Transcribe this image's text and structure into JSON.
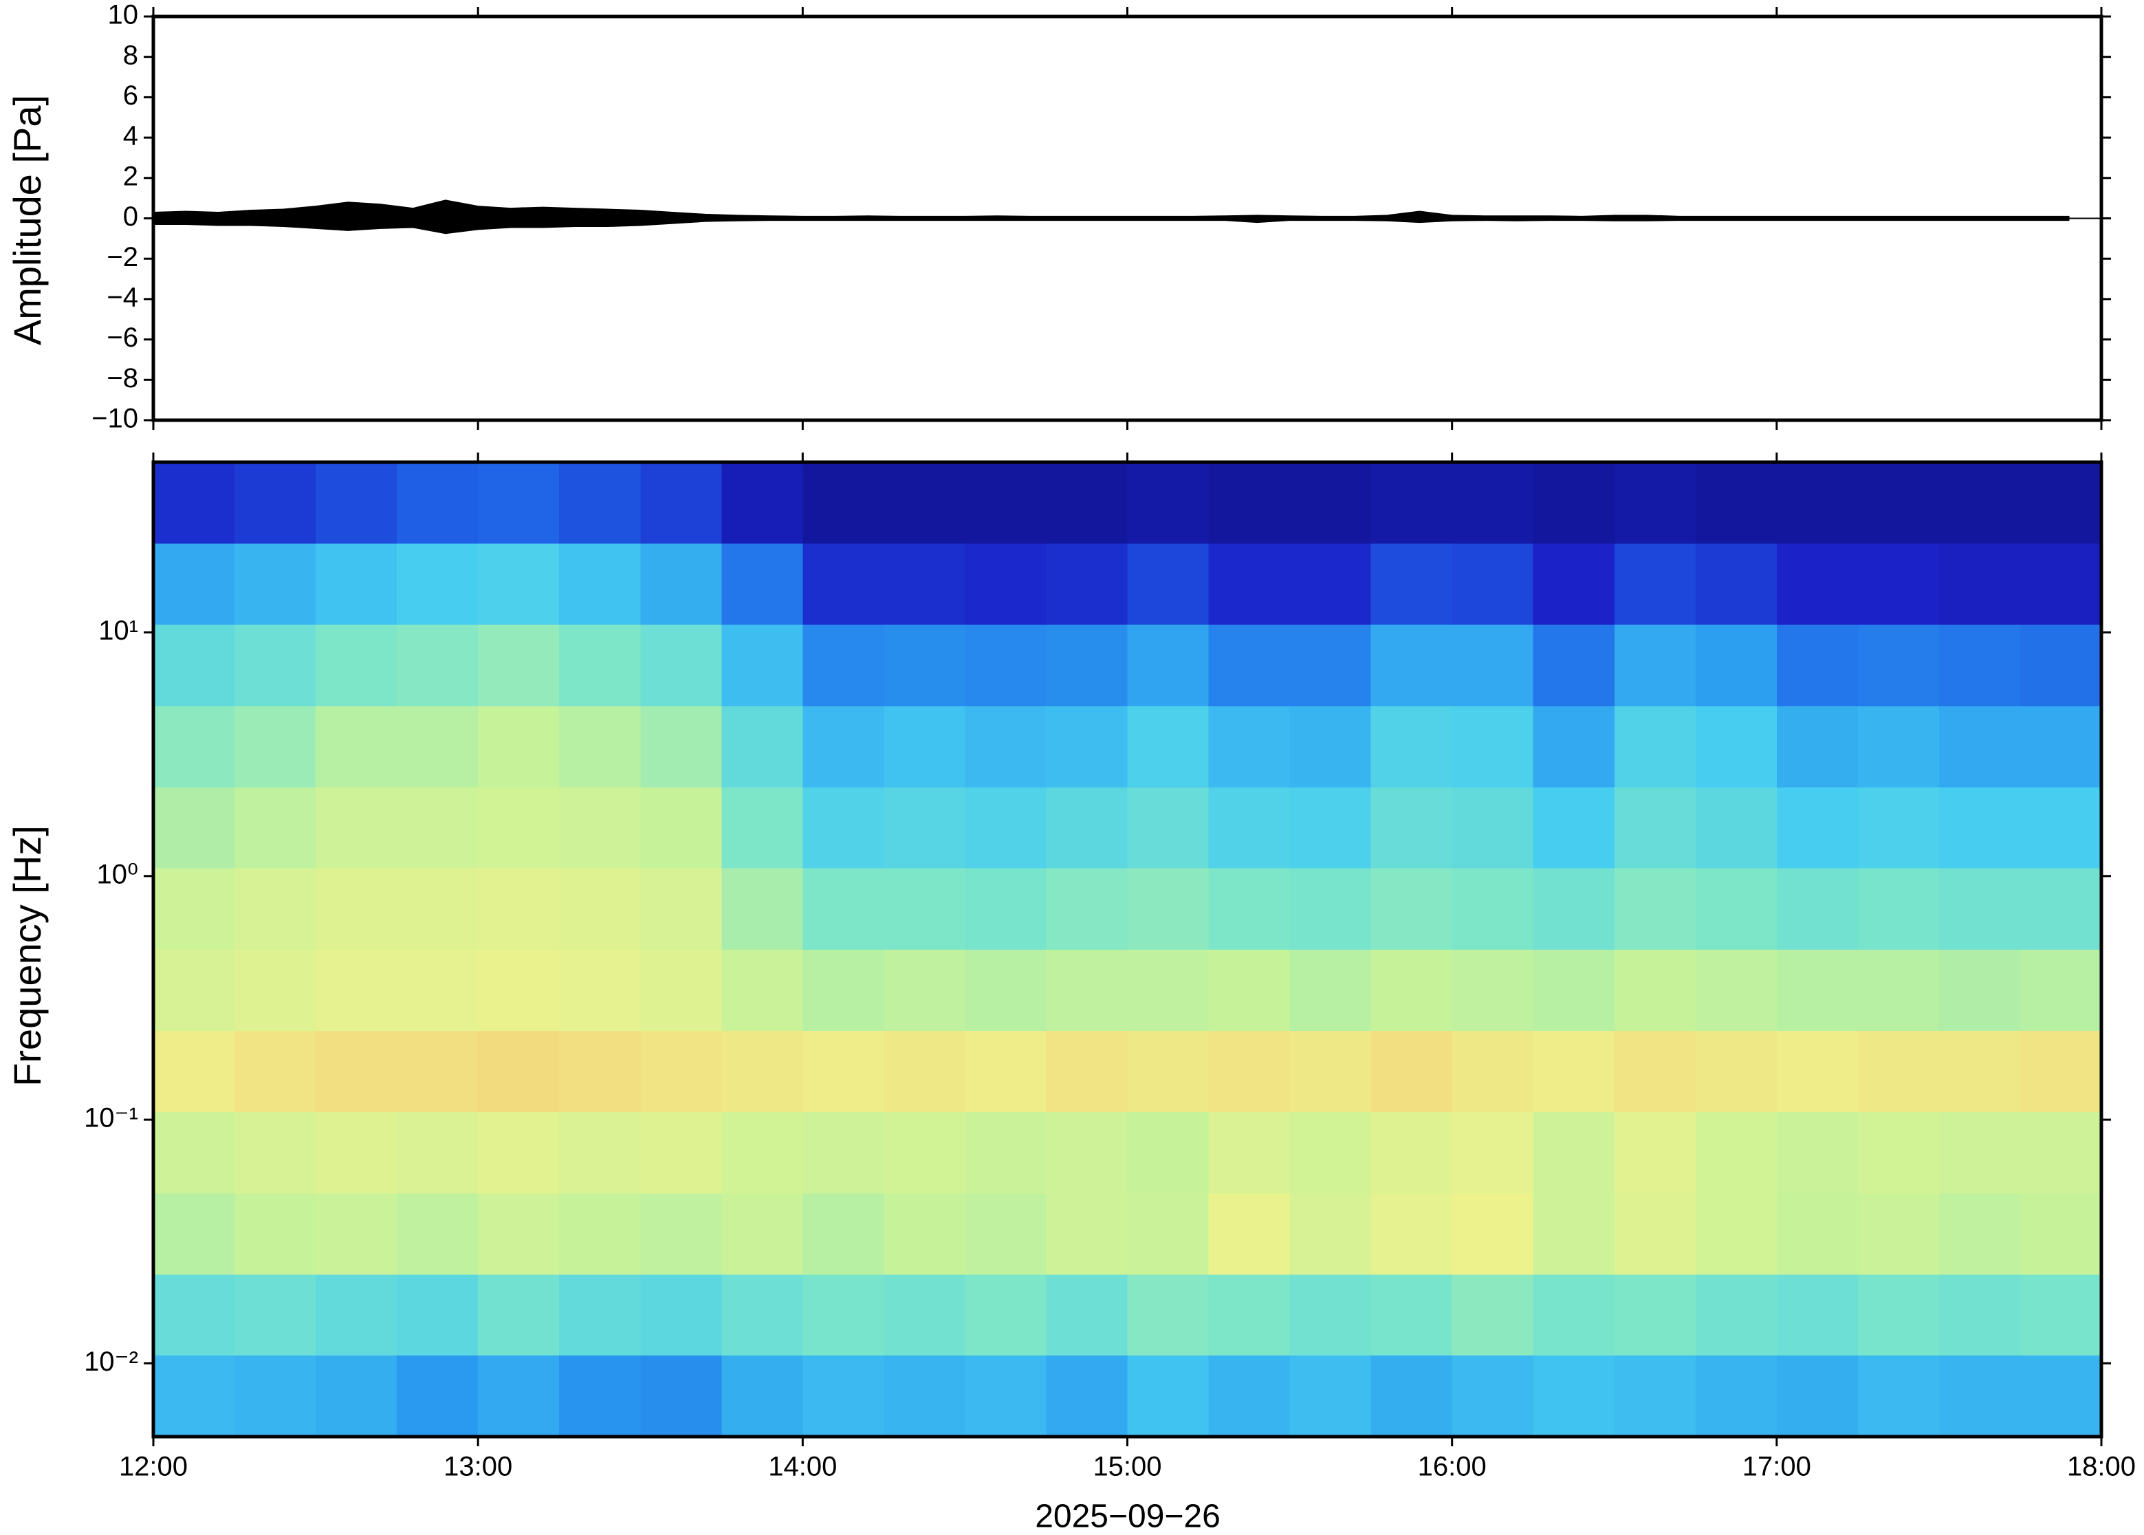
{
  "chart_data": [
    {
      "type": "area",
      "ylabel": "Amplitude [Pa]",
      "xlim": [
        12,
        18
      ],
      "xticks": [
        12,
        13,
        14,
        15,
        16,
        17,
        18
      ],
      "ylim": [
        -10,
        10
      ],
      "yticks": [
        {
          "value": -10,
          "label": "−10"
        },
        {
          "value": -8,
          "label": "−8"
        },
        {
          "value": -6,
          "label": "−6"
        },
        {
          "value": -4,
          "label": "−4"
        },
        {
          "value": -2,
          "label": "−2"
        },
        0,
        2,
        4,
        6,
        8,
        10
      ],
      "color": "#000000",
      "x": [
        12.0,
        12.1,
        12.2,
        12.3,
        12.4,
        12.5,
        12.6,
        12.7,
        12.8,
        12.9,
        13.0,
        13.1,
        13.2,
        13.3,
        13.4,
        13.5,
        13.6,
        13.7,
        13.8,
        13.9,
        14.0,
        14.1,
        14.2,
        14.3,
        14.4,
        14.5,
        14.6,
        14.7,
        14.8,
        14.9,
        15.0,
        15.1,
        15.2,
        15.3,
        15.4,
        15.5,
        15.6,
        15.7,
        15.8,
        15.9,
        16.0,
        16.1,
        16.2,
        16.3,
        16.4,
        16.5,
        16.6,
        16.7,
        16.8,
        16.9,
        17.0,
        17.1,
        17.2,
        17.3,
        17.4,
        17.5,
        17.6,
        17.7,
        17.8,
        17.9
      ],
      "values": [
        0.3,
        0.35,
        0.3,
        0.4,
        0.45,
        0.6,
        0.8,
        0.7,
        0.5,
        0.9,
        0.6,
        0.5,
        0.55,
        0.5,
        0.45,
        0.4,
        0.3,
        0.2,
        0.15,
        0.12,
        0.1,
        0.1,
        0.12,
        0.1,
        0.1,
        0.1,
        0.12,
        0.1,
        0.1,
        0.1,
        0.1,
        0.1,
        0.1,
        0.12,
        0.15,
        0.12,
        0.1,
        0.1,
        0.15,
        0.35,
        0.15,
        0.12,
        0.12,
        0.12,
        0.1,
        0.15,
        0.15,
        0.1,
        0.1,
        0.1,
        0.1,
        0.1,
        0.1,
        0.1,
        0.1,
        0.1,
        0.1,
        0.1,
        0.1,
        0.1
      ],
      "lower": [
        -0.3,
        -0.3,
        -0.35,
        -0.35,
        -0.4,
        -0.5,
        -0.6,
        -0.5,
        -0.45,
        -0.75,
        -0.55,
        -0.45,
        -0.45,
        -0.4,
        -0.4,
        -0.35,
        -0.25,
        -0.15,
        -0.12,
        -0.1,
        -0.1,
        -0.1,
        -0.1,
        -0.1,
        -0.1,
        -0.1,
        -0.1,
        -0.1,
        -0.1,
        -0.1,
        -0.1,
        -0.1,
        -0.1,
        -0.1,
        -0.2,
        -0.1,
        -0.1,
        -0.1,
        -0.12,
        -0.2,
        -0.12,
        -0.1,
        -0.12,
        -0.1,
        -0.1,
        -0.12,
        -0.12,
        -0.1,
        -0.1,
        -0.1,
        -0.1,
        -0.1,
        -0.1,
        -0.1,
        -0.1,
        -0.1,
        -0.1,
        -0.1,
        -0.1,
        -0.1
      ]
    },
    {
      "type": "heatmap",
      "ylabel": "Frequency [Hz]",
      "xlabel": "2025−09−26",
      "xlim": [
        12,
        18
      ],
      "xticks": [
        {
          "value": 12,
          "label": "12:00"
        },
        {
          "value": 13,
          "label": "13:00"
        },
        {
          "value": 14,
          "label": "14:00"
        },
        {
          "value": 15,
          "label": "15:00"
        },
        {
          "value": 16,
          "label": "16:00"
        },
        {
          "value": 17,
          "label": "17:00"
        },
        {
          "value": 18,
          "label": "18:00"
        }
      ],
      "log_y": true,
      "ylim": [
        0.005,
        50
      ],
      "yticks": [
        {
          "value": 0.01,
          "label": "10⁻²"
        },
        {
          "value": 0.1,
          "label": "10⁻¹"
        },
        {
          "value": 1,
          "label": "10⁰"
        },
        {
          "value": 10,
          "label": "10¹"
        }
      ],
      "clim": [
        0,
        10
      ],
      "colormap": [
        "#0b0b72",
        "#1a22c8",
        "#1f5fe6",
        "#2a9af0",
        "#46cdf0",
        "#7ee6c8",
        "#c6f29a",
        "#eef28c",
        "#f5c270",
        "#f08a4a",
        "#d83a2a"
      ],
      "x": [
        12.0,
        12.25,
        12.5,
        12.75,
        13.0,
        13.25,
        13.5,
        13.75,
        14.0,
        14.25,
        14.5,
        14.75,
        15.0,
        15.25,
        15.5,
        15.75,
        16.0,
        16.25,
        16.5,
        16.75,
        17.0,
        17.25,
        17.5,
        17.75
      ],
      "y_edges": [
        0.005,
        0.0108,
        0.0232,
        0.05,
        0.108,
        0.232,
        0.5,
        1.08,
        2.32,
        5,
        10.8,
        23.2,
        50
      ],
      "z": [
        [
          3.6,
          3.5,
          3.4,
          3.0,
          3.3,
          2.9,
          2.8,
          3.4,
          3.6,
          3.5,
          3.6,
          3.3,
          3.8,
          3.5,
          3.7,
          3.4,
          3.6,
          3.8,
          3.7,
          3.5,
          3.4,
          3.6,
          3.5,
          3.5
        ],
        [
          4.6,
          4.7,
          4.5,
          4.4,
          4.8,
          4.5,
          4.4,
          4.7,
          4.9,
          4.8,
          5.0,
          4.7,
          5.1,
          5.0,
          4.8,
          4.9,
          5.2,
          4.9,
          5.0,
          4.8,
          4.7,
          4.9,
          4.8,
          4.9
        ],
        [
          5.8,
          6.0,
          6.1,
          5.9,
          6.2,
          6.0,
          5.9,
          6.1,
          5.8,
          6.0,
          5.9,
          6.2,
          6.1,
          6.9,
          6.4,
          6.8,
          7.0,
          6.2,
          6.6,
          6.3,
          6.0,
          6.1,
          5.9,
          6.0
        ],
        [
          6.2,
          6.4,
          6.6,
          6.5,
          6.7,
          6.5,
          6.6,
          6.3,
          6.2,
          6.3,
          6.1,
          6.2,
          6.0,
          6.5,
          6.3,
          6.6,
          6.8,
          6.2,
          6.7,
          6.3,
          6.1,
          6.3,
          6.2,
          6.2
        ],
        [
          7.1,
          7.3,
          7.4,
          7.4,
          7.5,
          7.4,
          7.3,
          7.2,
          7.1,
          7.2,
          7.1,
          7.3,
          7.2,
          7.3,
          7.2,
          7.4,
          7.2,
          7.1,
          7.3,
          7.2,
          7.1,
          7.2,
          7.2,
          7.3
        ],
        [
          6.4,
          6.6,
          6.8,
          6.8,
          6.9,
          6.8,
          6.6,
          6.1,
          5.8,
          5.9,
          5.8,
          5.9,
          5.9,
          6.0,
          5.8,
          6.0,
          5.9,
          5.8,
          6.0,
          5.9,
          5.8,
          5.8,
          5.7,
          5.8
        ],
        [
          6.2,
          6.4,
          6.6,
          6.6,
          6.7,
          6.6,
          6.4,
          5.6,
          5.0,
          5.0,
          4.9,
          5.1,
          5.2,
          5.0,
          4.9,
          5.1,
          5.0,
          4.8,
          5.1,
          5.0,
          4.8,
          4.9,
          4.8,
          4.8
        ],
        [
          5.7,
          5.9,
          6.2,
          6.2,
          6.3,
          6.2,
          6.0,
          5.0,
          4.2,
          4.3,
          4.2,
          4.4,
          4.6,
          4.2,
          4.1,
          4.6,
          4.5,
          4.0,
          4.6,
          4.4,
          4.0,
          4.1,
          4.0,
          4.0
        ],
        [
          5.2,
          5.4,
          5.8,
          5.8,
          6.0,
          5.8,
          5.5,
          4.5,
          3.6,
          3.8,
          3.6,
          3.7,
          4.1,
          3.6,
          3.5,
          4.2,
          4.1,
          3.3,
          4.2,
          4.0,
          3.4,
          3.5,
          3.3,
          3.3
        ],
        [
          4.5,
          4.7,
          5.0,
          5.1,
          5.3,
          5.0,
          4.7,
          3.7,
          2.7,
          2.8,
          2.7,
          2.8,
          3.2,
          2.6,
          2.6,
          3.3,
          3.3,
          2.4,
          3.3,
          3.1,
          2.4,
          2.5,
          2.4,
          2.3
        ],
        [
          3.3,
          3.5,
          3.8,
          4.0,
          4.1,
          3.8,
          3.4,
          2.4,
          1.2,
          1.2,
          1.1,
          1.2,
          1.6,
          1.1,
          1.1,
          1.7,
          1.6,
          1.0,
          1.6,
          1.4,
          1.0,
          1.0,
          0.9,
          0.9
        ],
        [
          1.2,
          1.4,
          1.7,
          2.0,
          2.1,
          1.8,
          1.5,
          0.8,
          0.5,
          0.5,
          0.5,
          0.5,
          0.6,
          0.5,
          0.5,
          0.6,
          0.6,
          0.5,
          0.6,
          0.5,
          0.5,
          0.5,
          0.5,
          0.5
        ]
      ]
    }
  ]
}
